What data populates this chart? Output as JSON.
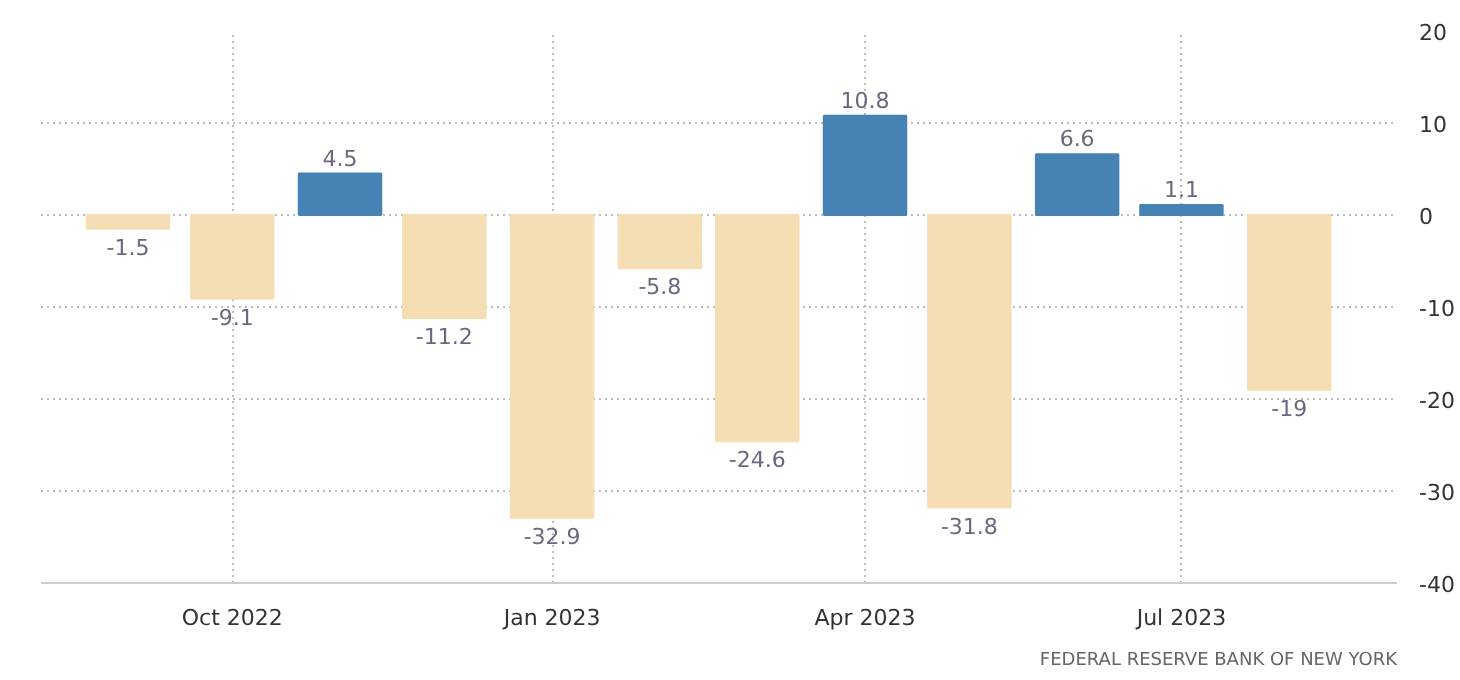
{
  "chart_data": {
    "type": "bar",
    "x": [
      "2022-09",
      "2022-10",
      "2022-11",
      "2022-12",
      "2023-01",
      "2023-02",
      "2023-03",
      "2023-04",
      "2023-05",
      "2023-06",
      "2023-07",
      "2023-08"
    ],
    "values": [
      -1.5,
      -9.1,
      4.5,
      -11.2,
      -32.9,
      -5.8,
      -24.6,
      10.8,
      -31.8,
      6.6,
      1.1,
      -19
    ],
    "colors": [
      "#f5deb3",
      "#f5deb3",
      "#4682b4",
      "#f5deb3",
      "#f5deb3",
      "#f5deb3",
      "#f5deb3",
      "#4682b4",
      "#f5deb3",
      "#4682b4",
      "#4682b4",
      "#f5deb3"
    ],
    "data_labels": true,
    "xlim": [
      "2022-08-07",
      "2023-09-01"
    ],
    "xticks": [
      {
        "value": "2022-10",
        "label": "Oct 2022"
      },
      {
        "value": "2023-01",
        "label": "Jan 2023"
      },
      {
        "value": "2023-04",
        "label": "Apr 2023"
      },
      {
        "value": "2023-07",
        "label": "Jul 2023"
      }
    ],
    "ylim": [
      -40,
      20
    ],
    "yticks": [
      -40,
      -30,
      -20,
      -10,
      0,
      10,
      20
    ],
    "grid": true,
    "annotations": [
      "FEDERAL RESERVE BANK OF NEW YORK"
    ]
  }
}
